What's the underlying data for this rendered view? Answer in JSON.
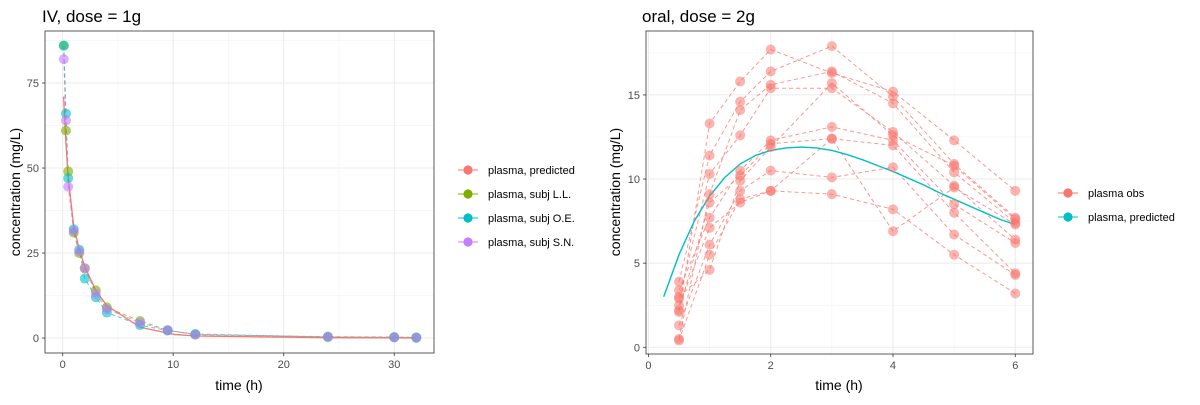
{
  "chart_data": [
    {
      "type": "scatter",
      "title": "IV, dose = 1g",
      "xlabel": "time (h)",
      "ylabel": "concentration (mg/L)",
      "xlim": [
        -1.6,
        33.6
      ],
      "ylim": [
        -4.4,
        90.3
      ],
      "xticks": [
        0,
        10,
        20,
        30
      ],
      "yticks": [
        0,
        25,
        50,
        75
      ],
      "grid": true,
      "legend_position": "right",
      "legend": [
        {
          "label": "plasma, predicted",
          "color": "#F8766D"
        },
        {
          "label": "plasma, subj L.L.",
          "color": "#7CAE00"
        },
        {
          "label": "plasma, subj O.E.",
          "color": "#00BFC4"
        },
        {
          "label": "plasma, subj S.N.",
          "color": "#C77CFF"
        }
      ],
      "series": [
        {
          "name": "plasma, predicted",
          "color": "#F8766D",
          "kind": "line",
          "x": [
            0.083,
            0.25,
            0.5,
            1,
            1.5,
            2,
            3,
            4,
            7,
            10,
            12,
            24,
            32
          ],
          "y": [
            71,
            60,
            47,
            33,
            26,
            21,
            14,
            9.5,
            3.2,
            1.1,
            0.6,
            0.1,
            0.02
          ]
        },
        {
          "name": "plasma, subj L.L.",
          "color": "#7CAE00",
          "kind": "points",
          "dashed": true,
          "x": [
            0.1,
            0.3,
            0.5,
            1,
            1.5,
            2,
            3,
            4,
            7,
            9.5,
            12,
            24,
            30,
            32
          ],
          "y": [
            86,
            61,
            49,
            31,
            25,
            20.5,
            14,
            9,
            5,
            2.3,
            1,
            0.4,
            0.3,
            0.2
          ]
        },
        {
          "name": "plasma, subj O.E.",
          "color": "#00BFC4",
          "kind": "points",
          "dashed": true,
          "x": [
            0.1,
            0.3,
            0.5,
            1,
            1.5,
            2,
            3,
            4,
            7,
            9.5,
            12,
            24,
            30,
            32
          ],
          "y": [
            86,
            66,
            47,
            32,
            26,
            17.5,
            12,
            7.5,
            3.8,
            2.2,
            1.2,
            0.3,
            0.2,
            0.1
          ]
        },
        {
          "name": "plasma, subj S.N.",
          "color": "#C77CFF",
          "kind": "points",
          "dashed": true,
          "x": [
            0.1,
            0.3,
            0.5,
            1,
            1.5,
            2,
            3,
            4,
            7,
            9.5,
            12,
            24,
            30,
            32
          ],
          "y": [
            82,
            64,
            44.5,
            31.5,
            25.5,
            20.5,
            13,
            8.5,
            4.5,
            2.3,
            1,
            0.3,
            0.2,
            0.1
          ]
        }
      ]
    },
    {
      "type": "scatter",
      "title": "oral, dose = 2g",
      "xlabel": "time (h)",
      "ylabel": "concentration (mg/L)",
      "xlim": [
        -0.04,
        6.29
      ],
      "ylim": [
        -0.4,
        18.8
      ],
      "xticks": [
        0,
        2,
        4,
        6
      ],
      "yticks": [
        0,
        5,
        10,
        15
      ],
      "grid": true,
      "legend_position": "right",
      "legend": [
        {
          "label": "plasma obs",
          "color": "#F8766D"
        },
        {
          "label": "plasma, predicted",
          "color": "#00BFC4"
        }
      ],
      "x": [
        0.5,
        1,
        1.5,
        2,
        3,
        4,
        5,
        6
      ],
      "observations": [
        [
          2.1,
          13.3,
          15.8,
          17.7,
          16.3,
          15.2,
          12.3,
          9.3
        ],
        [
          3.9,
          11.4,
          14.6,
          16.4,
          17.9,
          14.9,
          10.9,
          7.7
        ],
        [
          0.5,
          9.1,
          14.1,
          15.6,
          16.4,
          14.5,
          10.4,
          7.4
        ],
        [
          2.9,
          10.3,
          12.6,
          15.4,
          15.4,
          12.8,
          9.6,
          6.4
        ],
        [
          3.4,
          7.7,
          10.5,
          12.3,
          13.1,
          12.3,
          8.5,
          6.2
        ],
        [
          2.2,
          8.6,
          10.2,
          12.1,
          12.4,
          12.0,
          8.0,
          4.4
        ],
        [
          1.3,
          6.1,
          9.3,
          10.5,
          10.1,
          10.7,
          6.7,
          4.3
        ],
        [
          0.4,
          5.5,
          8.8,
          9.3,
          9.1,
          8.2,
          5.5,
          3.2
        ],
        [
          2.5,
          7.1,
          8.6,
          9.3,
          12.4,
          6.9,
          9.5,
          7.3
        ],
        [
          3.0,
          4.6,
          9.9,
          11.9,
          15.7,
          12.6,
          10.8,
          7.6
        ]
      ],
      "predicted": {
        "x": [
          0.25,
          0.5,
          0.75,
          1,
          1.25,
          1.5,
          1.75,
          2,
          2.25,
          2.5,
          2.75,
          3,
          3.25,
          3.5,
          3.75,
          4,
          4.25,
          4.5,
          4.75,
          5,
          5.25,
          5.5,
          5.75,
          6
        ],
        "y": [
          3.0,
          5.5,
          7.5,
          9.0,
          10.1,
          10.9,
          11.4,
          11.7,
          11.85,
          11.9,
          11.85,
          11.7,
          11.45,
          11.15,
          10.8,
          10.45,
          10.05,
          9.65,
          9.2,
          8.8,
          8.4,
          8.0,
          7.6,
          7.3
        ]
      }
    }
  ]
}
